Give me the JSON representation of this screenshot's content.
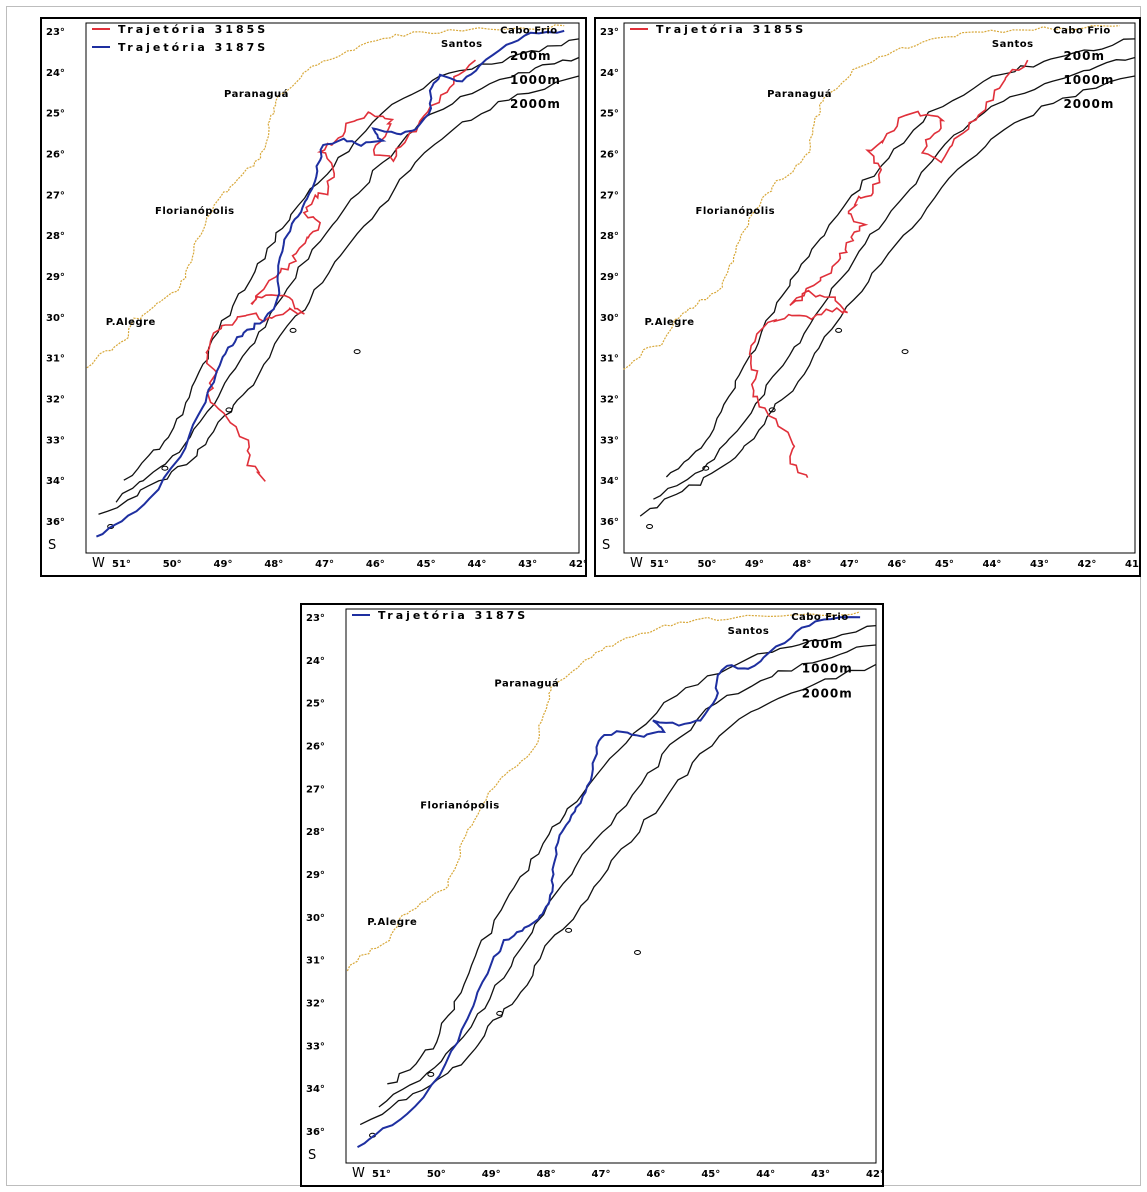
{
  "colors": {
    "track_3185S": "#e0303a",
    "track_3187S": "#1e2fa0",
    "coastline": "#d8a83a",
    "isobaths": "#111111"
  },
  "maps": {
    "lat_labels": [
      "23°",
      "24°",
      "25°",
      "26°",
      "27°",
      "28°",
      "29°",
      "30°",
      "31°",
      "32°",
      "33°",
      "34°",
      "36°"
    ],
    "lat_hemisphere": "S",
    "lon_west": "W",
    "lon_labels_a": [
      "51°",
      "50°",
      "49°",
      "48°",
      "47°",
      "46°",
      "45°",
      "44°",
      "43°",
      "42°"
    ],
    "lon_labels_b": [
      "51°",
      "50°",
      "49°",
      "48°",
      "47°",
      "46°",
      "45°",
      "44°",
      "43°",
      "42°",
      "41°"
    ],
    "lon_labels_c": [
      "51°",
      "50°",
      "49°",
      "48°",
      "47°",
      "46°",
      "45°",
      "44°",
      "43°",
      "42°"
    ],
    "places": {
      "cabo_frio": "Cabo Frio",
      "santos": "Santos",
      "paranagua": "Paranaguá",
      "florianopolis": "Florianópolis",
      "p_alegre": "P.Alegre"
    },
    "isobaths": [
      "200m",
      "1000m",
      "2000m"
    ]
  },
  "panels": [
    {
      "legend": [
        {
          "label": "Trajetória 3185S",
          "color": "#e0303a"
        },
        {
          "label": "Trajetória 3187S",
          "color": "#1e2fa0"
        }
      ]
    },
    {
      "legend": [
        {
          "label": "Trajetória 3185S",
          "color": "#e0303a"
        }
      ]
    },
    {
      "legend": [
        {
          "label": "Trajetória 3187S",
          "color": "#1e2fa0"
        }
      ]
    }
  ]
}
